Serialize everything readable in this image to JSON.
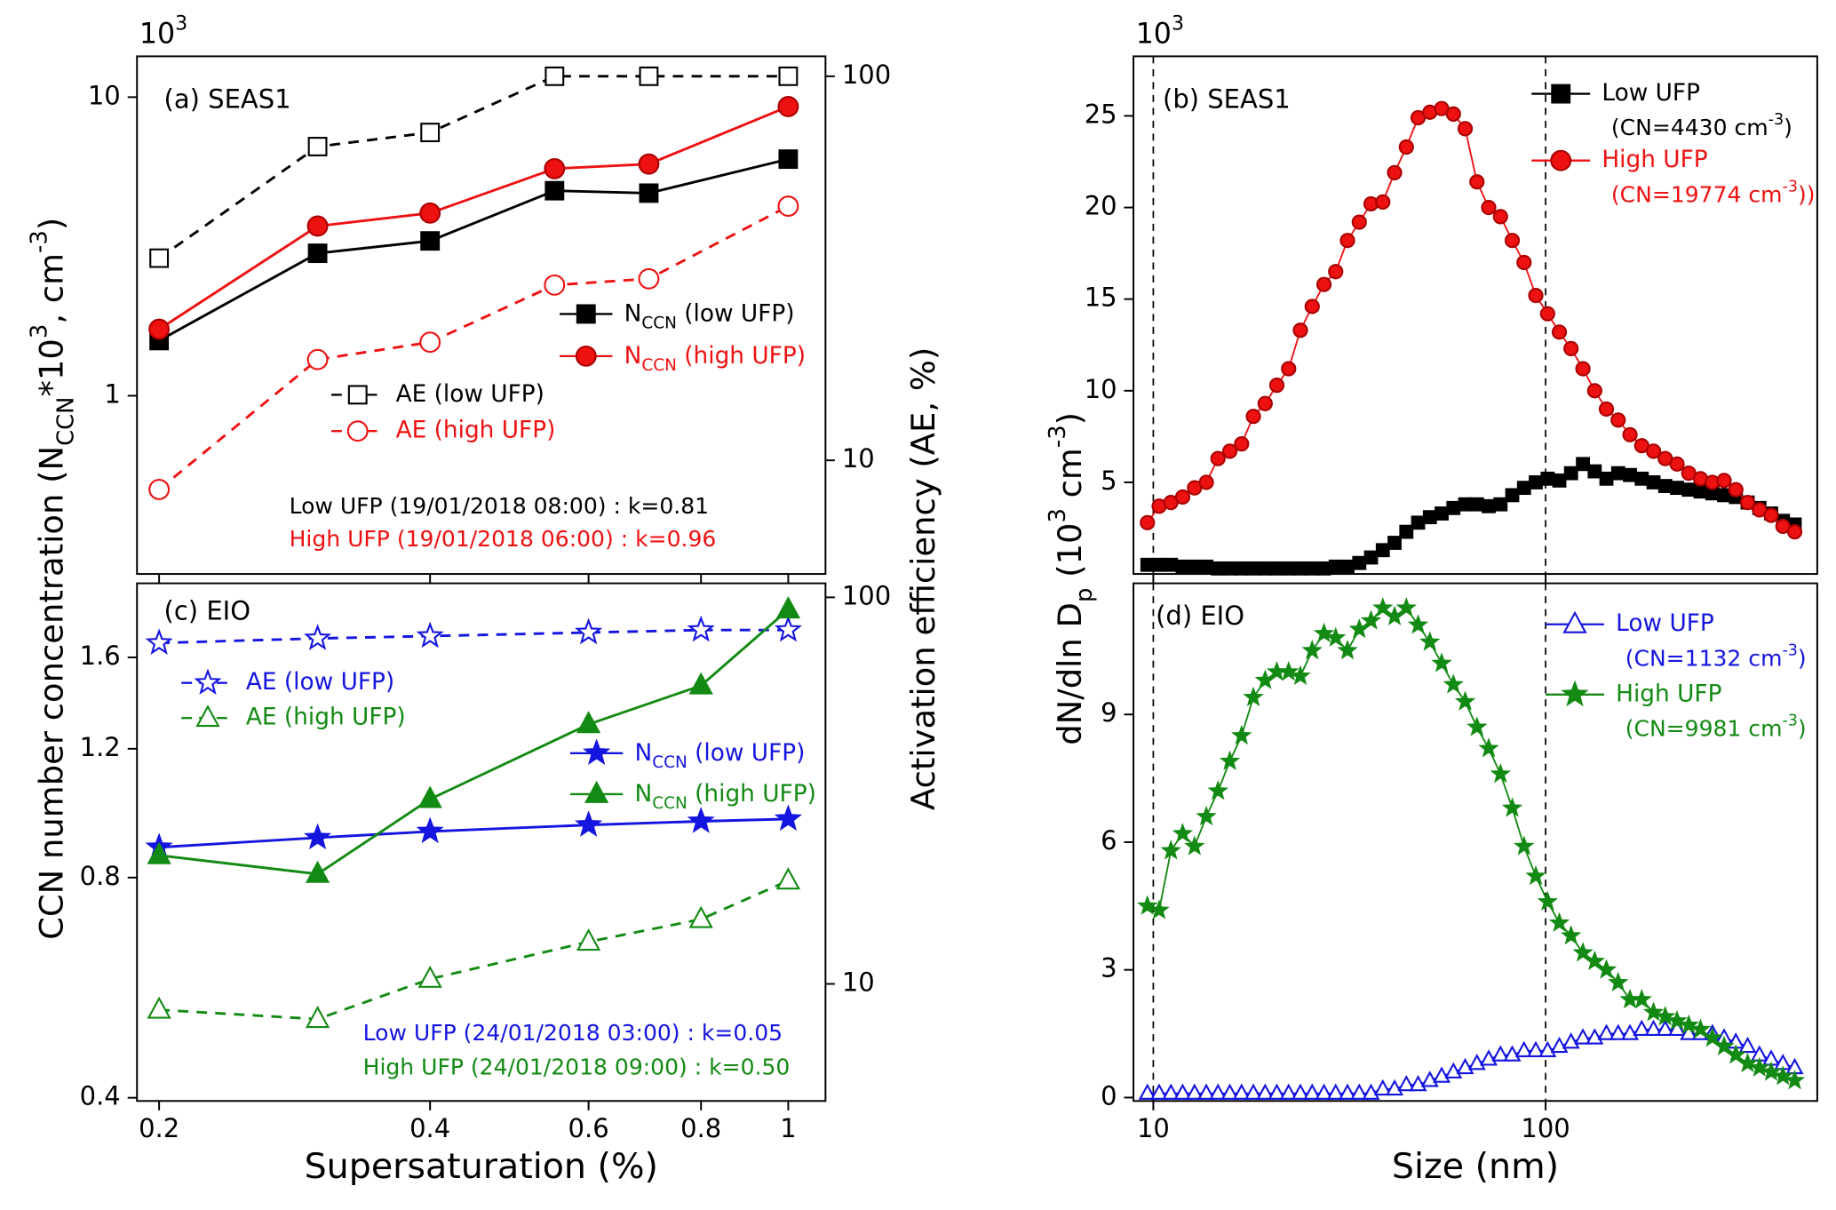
{
  "chart_data": [
    {
      "type": "line",
      "multiplier": [
        {
          "t": "10"
        },
        {
          "t": "3",
          "sup": true
        }
      ],
      "ylabel": [
        {
          "t": "CCN number concentration (N"
        },
        {
          "t": "CCN",
          "sub": true
        },
        {
          "t": "*10"
        },
        {
          "t": "3",
          "sup": true
        },
        {
          "t": ", cm"
        },
        {
          "t": "-3",
          "sup": true
        },
        {
          "t": ")"
        }
      ],
      "y2label": "Activation efficiency (AE, %)",
      "xlog": true,
      "ylog": true,
      "y2log": true,
      "xlim": [
        0.189,
        1.1
      ],
      "ylim": [
        0.253,
        13.7
      ],
      "y2lim": [
        5.06,
        112.7
      ],
      "xticks": [
        0.2,
        0.4,
        0.6,
        0.8,
        1
      ],
      "yticks": [
        1,
        10
      ],
      "y2ticks": [
        10,
        100
      ],
      "x": [
        0.2,
        0.3,
        0.4,
        0.55,
        0.7,
        1
      ],
      "series": [
        {
          "name": [
            {
              "t": "N"
            },
            {
              "t": "CCN",
              "sub": true
            },
            {
              "t": " (low UFP)"
            }
          ],
          "color": "#000000",
          "marker": "square",
          "filled": true,
          "dash": false,
          "values": [
            1.53,
            3.0,
            3.3,
            4.86,
            4.77,
            6.2
          ]
        },
        {
          "name": [
            {
              "t": "N"
            },
            {
              "t": "CCN",
              "sub": true
            },
            {
              "t": " (high UFP)"
            }
          ],
          "color": "#ee1111",
          "marker": "circle",
          "filled": true,
          "dash": false,
          "values": [
            1.67,
            3.7,
            4.09,
            5.76,
            5.97,
            9.3
          ]
        },
        {
          "name": "AE (low UFP)",
          "color": "#000000",
          "marker": "square",
          "filled": false,
          "dash": true,
          "axis": "y2",
          "values": [
            33.6,
            65.6,
            71.4,
            100,
            100,
            100
          ]
        },
        {
          "name": "AE (high UFP)",
          "color": "#ee1111",
          "marker": "circle",
          "filled": false,
          "dash": true,
          "axis": "y2",
          "values": [
            8.4,
            18.3,
            20.3,
            28.6,
            29.7,
            45.9
          ]
        }
      ],
      "annotations": [
        {
          "text": "(a) SEAS1",
          "color": "#000000"
        },
        {
          "text": "Low UFP (19/01/2018 08:00) : k=0.81",
          "color": "#000000"
        },
        {
          "text": "High UFP (19/01/2018 06:00) : k=0.96",
          "color": "#ee1111"
        }
      ]
    },
    {
      "type": "line",
      "multiplier": [
        {
          "t": "10"
        },
        {
          "t": "3",
          "sup": true
        }
      ],
      "ylabel": [
        {
          "t": "dN/dln D"
        },
        {
          "t": "p",
          "sub": true
        },
        {
          "t": " (10"
        },
        {
          "t": "3",
          "sup": true
        },
        {
          "t": " cm"
        },
        {
          "t": "-3",
          "sup": true
        },
        {
          "t": ")"
        }
      ],
      "xlog": true,
      "ylog": false,
      "xlim": [
        8.9,
        492.6
      ],
      "ylim": [
        0,
        28.25
      ],
      "xticks": [
        10,
        100
      ],
      "yticks": [
        5,
        10,
        15,
        20,
        25
      ],
      "vlines": [
        10,
        100
      ],
      "x": [
        9.66,
        10.35,
        11.09,
        11.88,
        12.74,
        13.65,
        14.62,
        15.67,
        16.79,
        17.99,
        19.28,
        20.65,
        22.13,
        23.71,
        25.41,
        27.23,
        29.17,
        31.26,
        33.5,
        35.89,
        38.46,
        41.21,
        44.16,
        47.32,
        50.7,
        54.33,
        58.21,
        62.37,
        66.83,
        71.61,
        76.74,
        82.22,
        88.1,
        94.41,
        101.2,
        108.4,
        116.1,
        124.5,
        133.4,
        142.9,
        153.1,
        164.1,
        175.8,
        188.4,
        201.8,
        216.3,
        231.7,
        248.3,
        266.1,
        285.1,
        305.5,
        327.3,
        350.8,
        375.8,
        402.7,
        431.5
      ],
      "series": [
        {
          "name": "Low UFP",
          "note": [
            {
              "t": "(CN=4430 cm"
            },
            {
              "t": "-3",
              "sup": true
            },
            {
              "t": ")"
            }
          ],
          "color": "#000000",
          "marker": "square",
          "filled": true,
          "dash": false,
          "values": [
            0.5,
            0.5,
            0.5,
            0.4,
            0.4,
            0.4,
            0.3,
            0.3,
            0.3,
            0.3,
            0.3,
            0.3,
            0.3,
            0.3,
            0.3,
            0.3,
            0.4,
            0.4,
            0.6,
            0.9,
            1.3,
            1.7,
            2.3,
            2.8,
            3.1,
            3.3,
            3.6,
            3.8,
            3.8,
            3.7,
            3.8,
            4.3,
            4.7,
            5.0,
            5.2,
            5.1,
            5.5,
            6.0,
            5.6,
            5.2,
            5.5,
            5.4,
            5.2,
            5.0,
            4.8,
            4.7,
            4.6,
            4.5,
            4.4,
            4.3,
            4.2,
            3.9,
            3.6,
            3.3,
            2.9,
            2.7
          ]
        },
        {
          "name": "High UFP",
          "note": [
            {
              "t": "(CN=19774 cm"
            },
            {
              "t": "-3",
              "sup": true
            },
            {
              "t": "))"
            }
          ],
          "color": "#ee1111",
          "marker": "circle",
          "filled": true,
          "dash": false,
          "values": [
            2.8,
            3.7,
            3.9,
            4.2,
            4.7,
            5.0,
            6.3,
            6.7,
            7.1,
            8.6,
            9.3,
            10.3,
            11.2,
            13.3,
            14.6,
            15.8,
            16.5,
            18.2,
            19.2,
            20.2,
            20.3,
            21.9,
            23.3,
            24.9,
            25.2,
            25.4,
            25.1,
            24.3,
            21.4,
            20.0,
            19.5,
            18.2,
            17.0,
            15.2,
            14.2,
            13.2,
            12.3,
            11.2,
            10.0,
            9.0,
            8.4,
            7.6,
            7.0,
            6.7,
            6.3,
            6.0,
            5.5,
            5.2,
            5.0,
            5.1,
            4.6,
            3.9,
            3.5,
            3.2,
            2.6,
            2.3
          ]
        }
      ],
      "annotations": [
        {
          "text": "(b) SEAS1",
          "color": "#000000"
        }
      ]
    },
    {
      "type": "line",
      "xlabel": "Supersaturation (%)",
      "xlog": true,
      "ylog": true,
      "y2log": true,
      "xlim": [
        0.189,
        1.1
      ],
      "ylim": [
        0.396,
        2.02
      ],
      "y2lim": [
        4.98,
        108.7
      ],
      "xticks": [
        0.2,
        0.4,
        0.6,
        0.8,
        1
      ],
      "yticks": [
        0.4,
        0.8,
        1.2,
        1.6
      ],
      "y2ticks": [
        10,
        100
      ],
      "x": [
        0.2,
        0.3,
        0.4,
        0.6,
        0.8,
        1
      ],
      "series": [
        {
          "name": "AE (low UFP)",
          "color": "#1515e0",
          "marker": "star",
          "filled": false,
          "dash": true,
          "axis": "y2",
          "values": [
            76.2,
            78.3,
            79.4,
            81.1,
            82.3,
            82.3
          ]
        },
        {
          "name": "AE (high UFP)",
          "color": "#138a13",
          "marker": "triangle",
          "filled": false,
          "dash": true,
          "axis": "y2",
          "values": [
            8.57,
            8.11,
            10.3,
            12.85,
            14.7,
            18.5
          ]
        },
        {
          "name": [
            {
              "t": "N"
            },
            {
              "t": "CCN",
              "sub": true
            },
            {
              "t": " (low UFP)"
            }
          ],
          "color": "#1515e0",
          "marker": "star",
          "filled": true,
          "dash": false,
          "values": [
            0.88,
            0.907,
            0.925,
            0.944,
            0.955,
            0.962
          ]
        },
        {
          "name": [
            {
              "t": "N"
            },
            {
              "t": "CCN",
              "sub": true
            },
            {
              "t": " (high UFP)"
            }
          ],
          "color": "#138a13",
          "marker": "triangle",
          "filled": true,
          "dash": false,
          "values": [
            0.858,
            0.809,
            1.024,
            1.296,
            1.464,
            1.86
          ]
        }
      ],
      "annotations": [
        {
          "text": "(c) EIO",
          "color": "#000000"
        },
        {
          "text": "Low UFP (24/01/2018 03:00) : k=0.05",
          "color": "#1515e0"
        },
        {
          "text": "High UFP (24/01/2018 09:00) : k=0.50",
          "color": "#138a13"
        }
      ]
    },
    {
      "type": "line",
      "xlabel": "Size (nm)",
      "xlog": true,
      "ylog": false,
      "xlim": [
        8.9,
        492.6
      ],
      "ylim": [
        -0.08,
        12.08
      ],
      "xticks": [
        10,
        100
      ],
      "yticks": [
        0,
        3,
        6,
        9
      ],
      "vlines": [
        10,
        100
      ],
      "x": [
        9.66,
        10.35,
        11.09,
        11.88,
        12.74,
        13.65,
        14.62,
        15.67,
        16.79,
        17.99,
        19.28,
        20.65,
        22.13,
        23.71,
        25.41,
        27.23,
        29.17,
        31.26,
        33.5,
        35.89,
        38.46,
        41.21,
        44.16,
        47.32,
        50.7,
        54.33,
        58.21,
        62.37,
        66.83,
        71.61,
        76.74,
        82.22,
        88.1,
        94.41,
        101.2,
        108.4,
        116.1,
        124.5,
        133.4,
        142.9,
        153.1,
        164.1,
        175.8,
        188.4,
        201.8,
        216.3,
        231.7,
        248.3,
        266.1,
        285.1,
        305.5,
        327.3,
        350.8,
        375.8,
        402.7,
        431.5
      ],
      "series": [
        {
          "name": "Low UFP",
          "note": [
            {
              "t": "(CN=1132 cm"
            },
            {
              "t": "-3",
              "sup": true
            },
            {
              "t": ")"
            }
          ],
          "color": "#1515e0",
          "marker": "triangle",
          "filled": false,
          "dash": false,
          "values": [
            0.1,
            0.1,
            0.1,
            0.1,
            0.1,
            0.1,
            0.1,
            0.1,
            0.1,
            0.1,
            0.1,
            0.1,
            0.1,
            0.1,
            0.1,
            0.1,
            0.1,
            0.1,
            0.1,
            0.1,
            0.2,
            0.2,
            0.3,
            0.3,
            0.4,
            0.5,
            0.6,
            0.7,
            0.8,
            0.9,
            1.0,
            1.0,
            1.1,
            1.1,
            1.1,
            1.2,
            1.3,
            1.4,
            1.4,
            1.5,
            1.5,
            1.5,
            1.6,
            1.6,
            1.6,
            1.6,
            1.5,
            1.5,
            1.5,
            1.4,
            1.3,
            1.2,
            1.0,
            0.9,
            0.8,
            0.7
          ]
        },
        {
          "name": "High UFP",
          "note": [
            {
              "t": "(CN=9981 cm"
            },
            {
              "t": "-3",
              "sup": true
            },
            {
              "t": ")"
            }
          ],
          "color": "#138a13",
          "marker": "star",
          "filled": true,
          "dash": false,
          "values": [
            4.5,
            4.4,
            5.8,
            6.2,
            5.9,
            6.6,
            7.2,
            7.9,
            8.5,
            9.4,
            9.8,
            10.0,
            10.0,
            9.9,
            10.5,
            10.9,
            10.8,
            10.5,
            11.0,
            11.2,
            11.5,
            11.3,
            11.5,
            11.1,
            10.7,
            10.2,
            9.7,
            9.3,
            8.7,
            8.2,
            7.6,
            6.8,
            5.9,
            5.2,
            4.6,
            4.1,
            3.8,
            3.4,
            3.2,
            3.0,
            2.7,
            2.3,
            2.3,
            2.0,
            1.9,
            1.8,
            1.7,
            1.6,
            1.4,
            1.2,
            1.0,
            0.8,
            0.7,
            0.6,
            0.5,
            0.4
          ]
        }
      ],
      "annotations": [
        {
          "text": "(d) EIO",
          "color": "#000000"
        }
      ]
    }
  ]
}
